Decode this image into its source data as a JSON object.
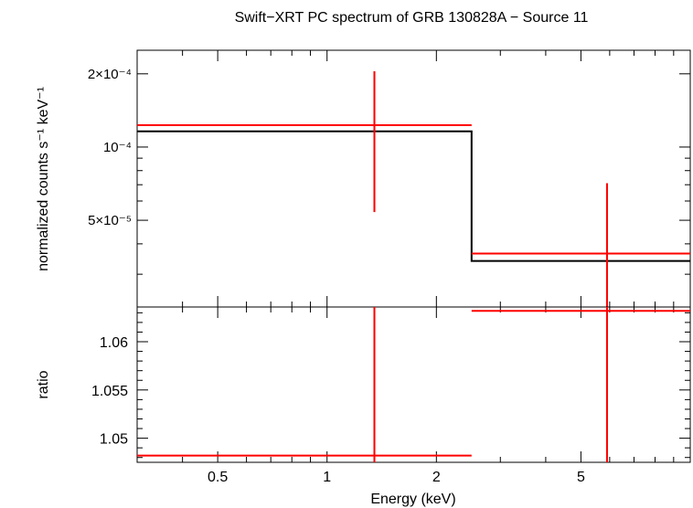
{
  "chart_data": [
    {
      "panel": "spectrum",
      "type": "line",
      "title": "Swift−XRT PC spectrum of GRB 130828A − Source 11",
      "xlabel": "Energy (keV)",
      "ylabel": "normalized counts s⁻¹ keV⁻¹",
      "xscale": "log",
      "yscale": "log",
      "xlim": [
        0.3,
        10
      ],
      "ylim": [
        2.2e-05,
        0.00025
      ],
      "y_ticks": [
        {
          "value": 0.0002,
          "label": "2×10⁻⁴"
        },
        {
          "value": 0.0001,
          "label": "10⁻⁴"
        },
        {
          "value": 5e-05,
          "label": "5×10⁻⁵"
        }
      ],
      "series": [
        {
          "kind": "data",
          "color": "#ff0000",
          "points": [
            {
              "x_lo": 0.3,
              "x_hi": 2.5,
              "x": 1.35,
              "y": 0.000123,
              "y_lo": 5.4e-05,
              "y_hi": 0.000205
            },
            {
              "x_lo": 2.5,
              "x_hi": 10,
              "x": 5.9,
              "y": 3.65e-05,
              "y_lo": 1e-07,
              "y_hi": 7.1e-05
            }
          ]
        },
        {
          "kind": "model",
          "color": "#000000",
          "steps": [
            {
              "x_lo": 0.3,
              "x_hi": 2.5,
              "y": 0.000116
            },
            {
              "x_lo": 2.5,
              "x_hi": 10,
              "y": 3.4e-05
            }
          ]
        }
      ]
    },
    {
      "panel": "ratio",
      "type": "scatter",
      "xlabel": "Energy (keV)",
      "ylabel": "ratio",
      "xscale": "log",
      "xlim": [
        0.3,
        10
      ],
      "ylim": [
        1.0475,
        1.0636
      ],
      "y_ticks": [
        {
          "value": 1.05,
          "label": "1.05"
        },
        {
          "value": 1.055,
          "label": "1.055"
        },
        {
          "value": 1.06,
          "label": "1.06"
        }
      ],
      "x_ticks": [
        {
          "value": 0.5,
          "label": "0.5"
        },
        {
          "value": 1,
          "label": "1"
        },
        {
          "value": 2,
          "label": "2"
        },
        {
          "value": 5,
          "label": "5"
        }
      ],
      "series": [
        {
          "kind": "data",
          "color": "#ff0000",
          "points": [
            {
              "x_lo": 0.3,
              "x_hi": 2.5,
              "x": 1.35,
              "y": 1.0482,
              "y_lo": 1.0475,
              "y_hi": 1.0636
            },
            {
              "x_lo": 2.5,
              "x_hi": 10,
              "x": 5.9,
              "y": 1.0632,
              "y_lo": 1.0475,
              "y_hi": 1.0636
            }
          ]
        }
      ]
    }
  ]
}
